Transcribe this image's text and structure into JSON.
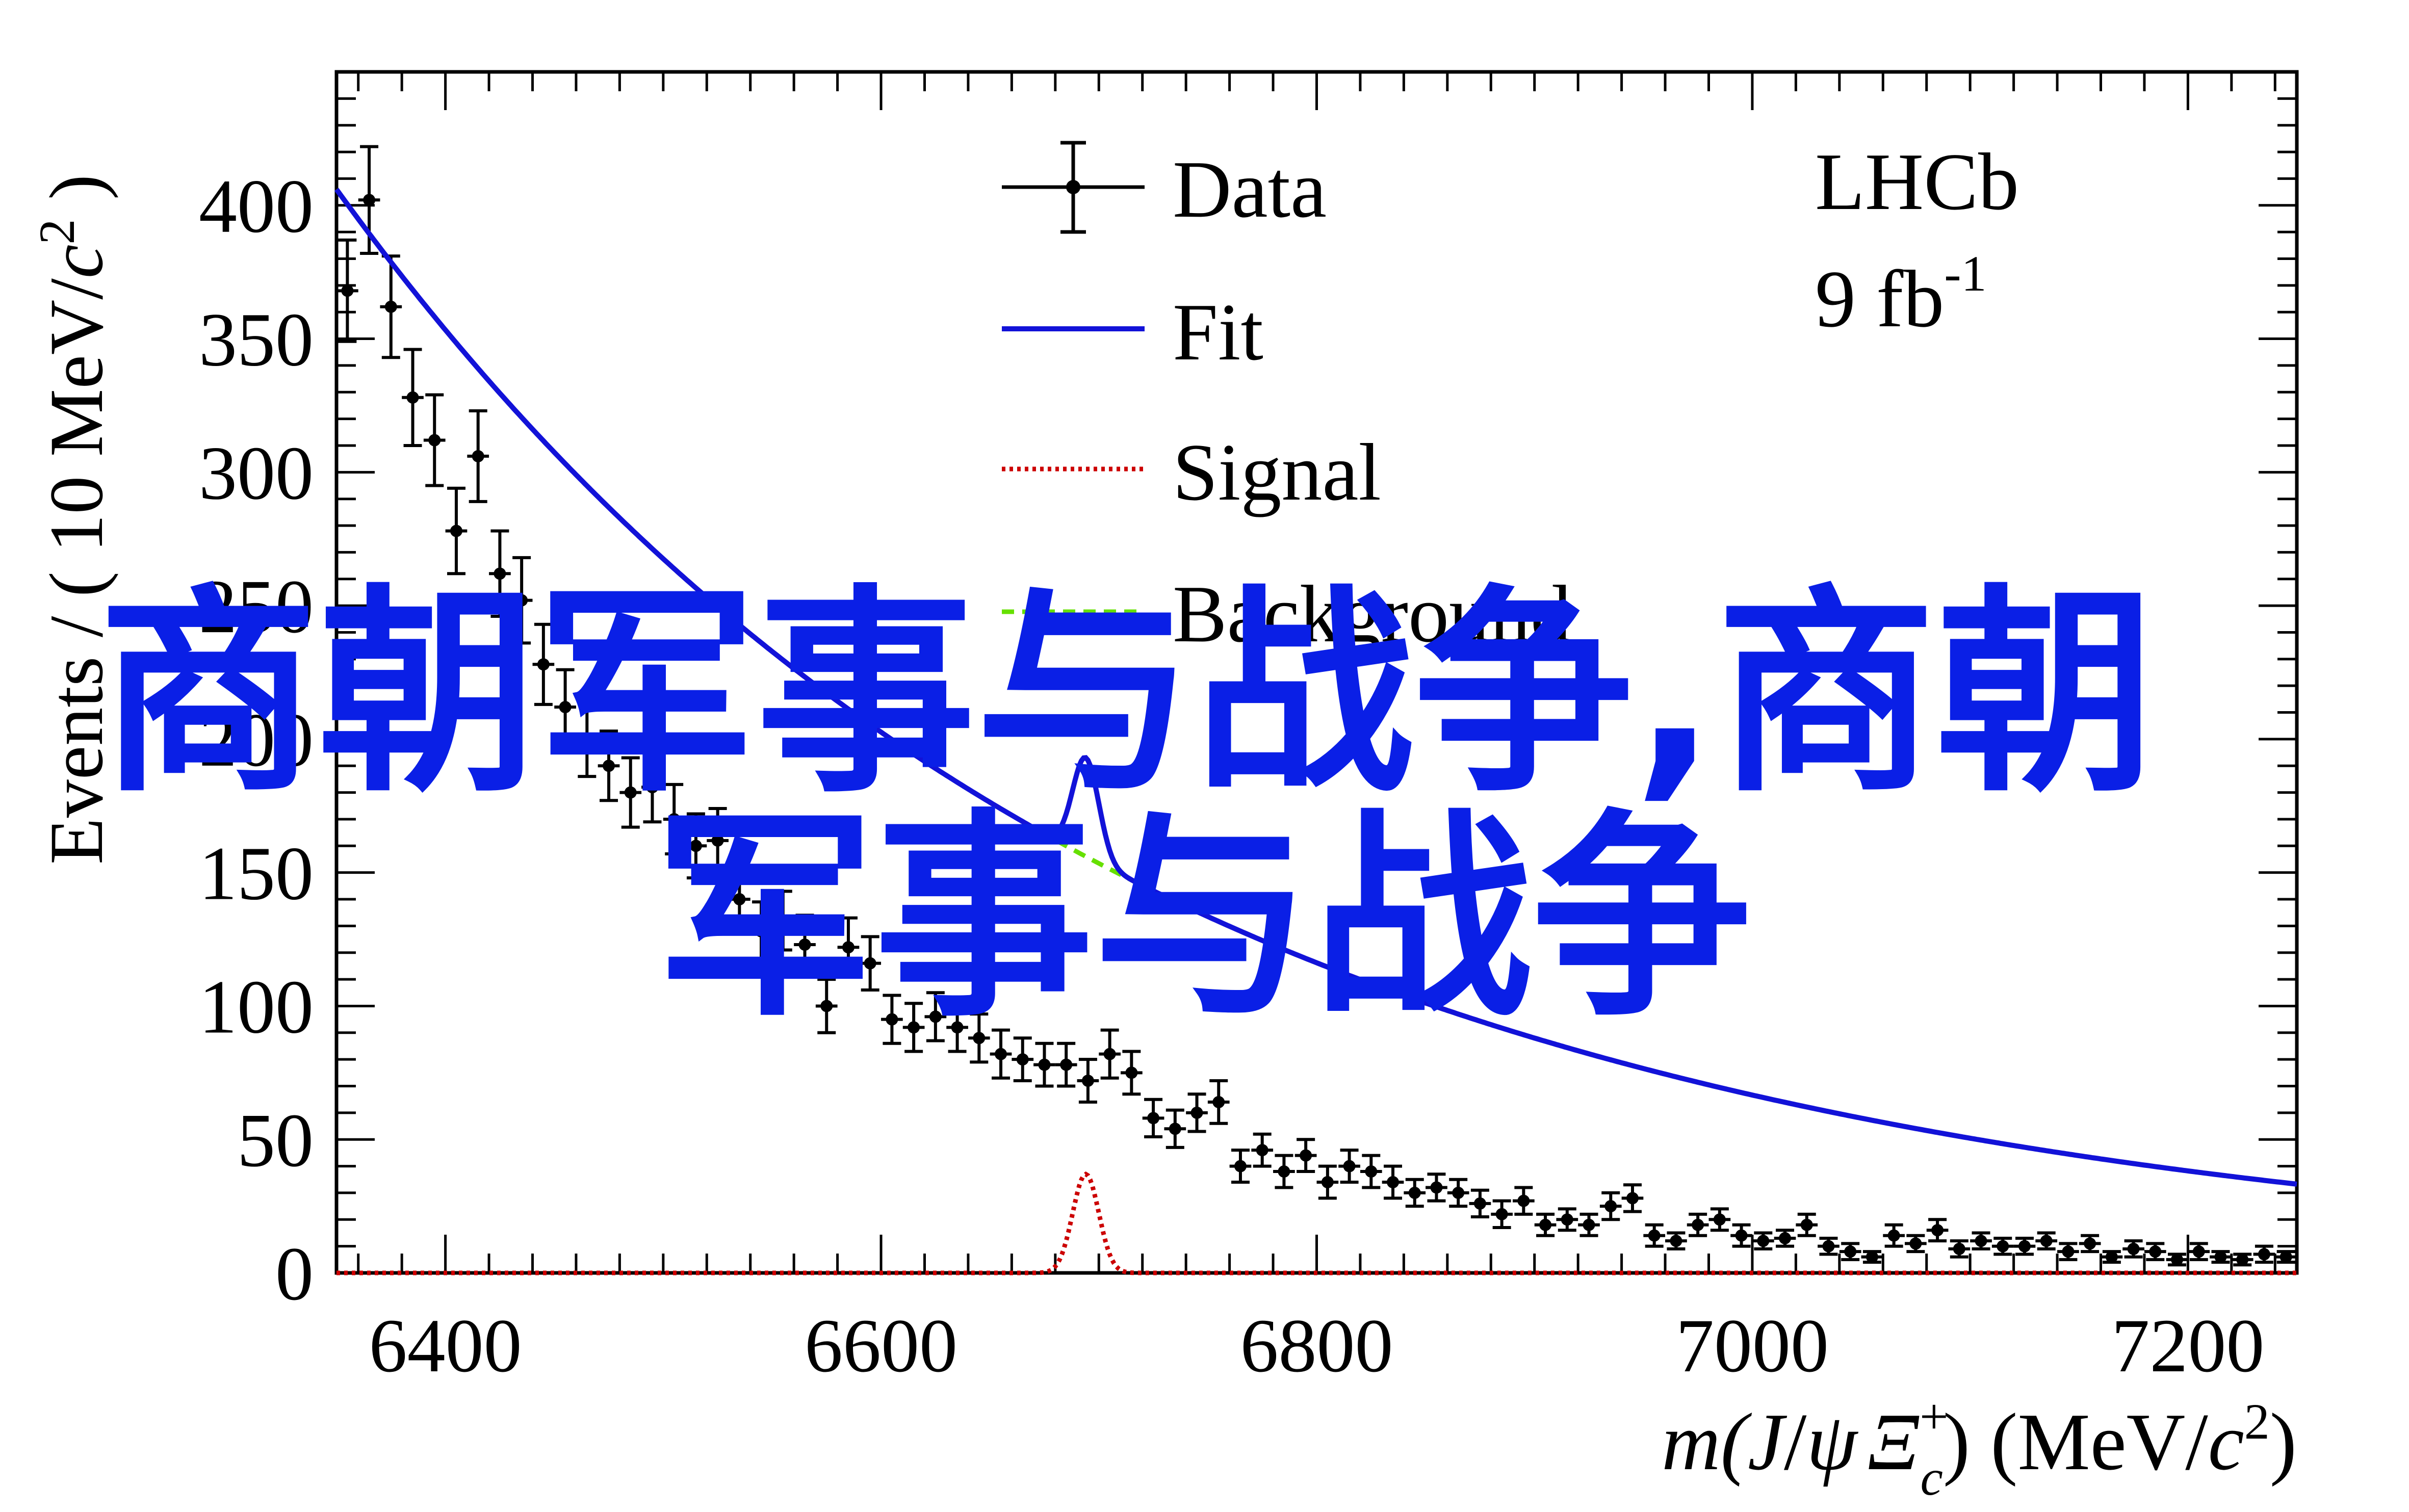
{
  "chart_data": {
    "type": "scatter",
    "title": "",
    "xlabel": {
      "prefix": "m(",
      "J": "J",
      "slash": "/",
      "psi": "ψ",
      "xi": "Ξ",
      "sup": "+",
      "sub": "c",
      "close": ")",
      "units_open": "(MeV/",
      "c": "c",
      "two": "2",
      "units_close": ")"
    },
    "ylabel": {
      "main": "Events / ( 10 MeV/",
      "c": "c",
      "two": "2",
      "close": " )"
    },
    "xlim": [
      6350,
      7250
    ],
    "ylim": [
      0,
      450
    ],
    "x_ticks": [
      6400,
      6600,
      6800,
      7000,
      7200
    ],
    "x_tick_labels": [
      "6400",
      "6600",
      "6800",
      "7000",
      "7200"
    ],
    "y_ticks": [
      0,
      50,
      100,
      150,
      200,
      250,
      300,
      350,
      400
    ],
    "y_tick_labels": [
      "0",
      "50",
      "100",
      "150",
      "200",
      "250",
      "300",
      "350",
      "400"
    ],
    "legend_position": "top-center",
    "series": [
      {
        "name": "Data",
        "kind": "points_with_errors",
        "color": "#000000"
      },
      {
        "name": "Fit",
        "kind": "line",
        "color": "#1212d8"
      },
      {
        "name": "Signal",
        "kind": "dotted",
        "color": "#cc0000"
      },
      {
        "name": "Background",
        "kind": "dashed",
        "color": "#66e000"
      }
    ],
    "data": {
      "x": [
        6355,
        6365,
        6375,
        6385,
        6395,
        6405,
        6415,
        6425,
        6435,
        6445,
        6455,
        6465,
        6475,
        6485,
        6495,
        6505,
        6515,
        6525,
        6535,
        6545,
        6555,
        6565,
        6575,
        6585,
        6595,
        6605,
        6615,
        6625,
        6635,
        6645,
        6655,
        6665,
        6675,
        6685,
        6695,
        6705,
        6715,
        6725,
        6735,
        6745,
        6755,
        6765,
        6775,
        6785,
        6795,
        6805,
        6815,
        6825,
        6835,
        6845,
        6855,
        6865,
        6875,
        6885,
        6895,
        6905,
        6915,
        6925,
        6935,
        6945,
        6955,
        6965,
        6975,
        6985,
        6995,
        7005,
        7015,
        7025,
        7035,
        7045,
        7055,
        7065,
        7075,
        7085,
        7095,
        7105,
        7115,
        7125,
        7135,
        7145,
        7155,
        7165,
        7175,
        7185,
        7195,
        7205,
        7215,
        7225,
        7235,
        7245
      ],
      "y": [
        368,
        402,
        362,
        328,
        312,
        278,
        306,
        262,
        252,
        228,
        212,
        200,
        190,
        180,
        182,
        170,
        160,
        162,
        140,
        128,
        132,
        123,
        100,
        122,
        116,
        95,
        92,
        96,
        92,
        88,
        82,
        80,
        78,
        78,
        72,
        82,
        75,
        58,
        54,
        60,
        64,
        40,
        46,
        38,
        44,
        34,
        40,
        38,
        34,
        30,
        32,
        30,
        26,
        22,
        27,
        18,
        20,
        18,
        25,
        28,
        14,
        12,
        18,
        20,
        14,
        12,
        13,
        18,
        10,
        8,
        6,
        14,
        11,
        16,
        9,
        12,
        10,
        10,
        12,
        8,
        11,
        6,
        9,
        8,
        5,
        8,
        6,
        5,
        7,
        6
      ],
      "y_err": [
        19,
        20,
        19,
        18,
        17,
        16,
        17,
        16,
        16,
        15,
        14,
        14,
        13,
        13,
        13,
        13,
        12,
        12,
        12,
        11,
        11,
        11,
        10,
        11,
        10,
        9,
        9,
        9,
        9,
        9,
        9,
        8,
        8,
        8,
        8,
        9,
        8,
        7,
        7,
        7,
        8,
        6,
        6,
        6,
        6,
        6,
        6,
        6,
        6,
        5,
        5,
        5,
        5,
        5,
        5,
        4,
        4,
        4,
        5,
        5,
        4,
        3,
        4,
        4,
        4,
        3,
        3,
        4,
        3,
        3,
        2,
        4,
        3,
        4,
        3,
        3,
        3,
        3,
        3,
        3,
        3,
        2,
        3,
        3,
        2,
        3,
        2,
        2,
        3,
        2
      ]
    },
    "fit": {
      "background": {
        "a": 406,
        "b": 0.00278,
        "offset": 6350
      },
      "signal": {
        "mean": 6694,
        "sigma": 6,
        "amplitude": 37
      }
    }
  },
  "legend": {
    "data_label": "Data",
    "fit_label": "Fit",
    "signal_label": "Signal",
    "background_label": "Background"
  },
  "annotation": {
    "experiment": "LHCb",
    "lumi_value": "9 fb",
    "lumi_exp": "-1"
  },
  "overlay": {
    "line1": "商朝军事与战争,商朝",
    "line2": "军事与战争"
  }
}
